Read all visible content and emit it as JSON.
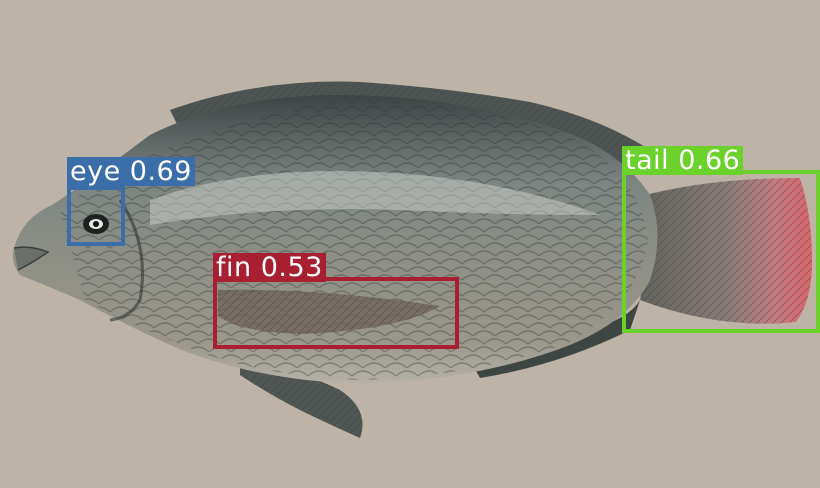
{
  "detections": [
    {
      "label": "eye 0.69",
      "class": "eye",
      "score": 0.69,
      "color": "#3b6ea8"
    },
    {
      "label": "fin 0.53",
      "class": "fin",
      "score": 0.53,
      "color": "#a81f32"
    },
    {
      "label": "tail 0.66",
      "class": "tail",
      "score": 0.66,
      "color": "#6bd12b"
    }
  ]
}
